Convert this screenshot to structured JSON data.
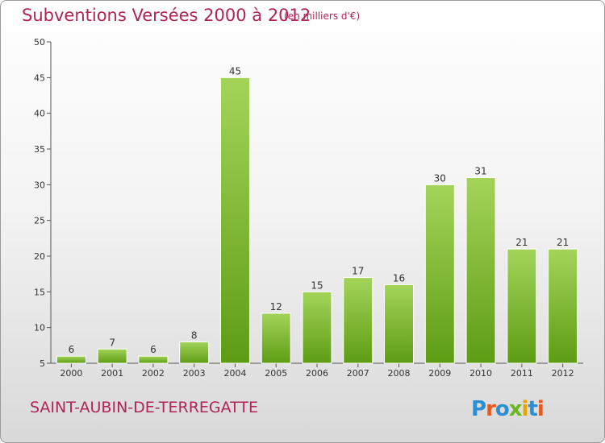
{
  "header": {
    "title": "Subventions Versées 2000 à 2012",
    "unit_note": "(en milliers d'€)"
  },
  "footer": {
    "place": "SAINT-AUBIN-DE-TERREGATTE",
    "logo_text": "Proxiti"
  },
  "colors": {
    "title": "#b0245a",
    "bar_light": "#a3d45a",
    "bar_dark": "#5e9c14",
    "axis": "#333333"
  },
  "chart_data": {
    "type": "bar",
    "title": "Subventions Versées 2000 à 2012",
    "xlabel": "",
    "ylabel": "",
    "categories": [
      "2000",
      "2001",
      "2002",
      "2003",
      "2004",
      "2005",
      "2006",
      "2007",
      "2008",
      "2009",
      "2010",
      "2011",
      "2012"
    ],
    "values": [
      6,
      7,
      6,
      8,
      45,
      12,
      15,
      17,
      16,
      30,
      31,
      21,
      21
    ],
    "ylim": [
      5,
      50
    ],
    "yticks": [
      5,
      10,
      15,
      20,
      25,
      30,
      35,
      40,
      45,
      50
    ],
    "grid": false,
    "legend": "none",
    "data_labels": true
  }
}
